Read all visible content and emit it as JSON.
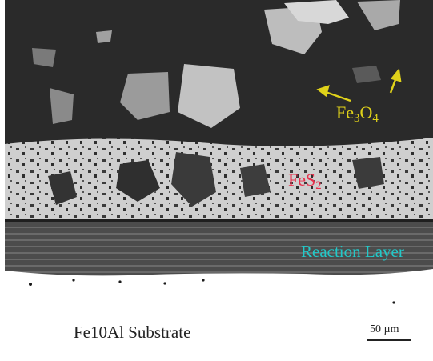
{
  "labels": {
    "fe3o4_base": "Fe",
    "fe3o4_sub1": "3",
    "fe3o4_mid": "O",
    "fe3o4_sub2": "4",
    "fes2_base": "FeS",
    "fes2_sub": "2",
    "reaction_layer": "Reaction Layer",
    "substrate": "Fe10Al Substrate",
    "scale_bar": "50 µm"
  },
  "colors": {
    "fe3o4_label": "#e0d21a",
    "fes2_label": "#e8304c",
    "reaction_label": "#22c9c9",
    "oxide_layer": "#2b2b2b",
    "sulfide_layer": "#c9c9c9",
    "reaction_layer": "#555555",
    "substrate": "#ffffff"
  }
}
